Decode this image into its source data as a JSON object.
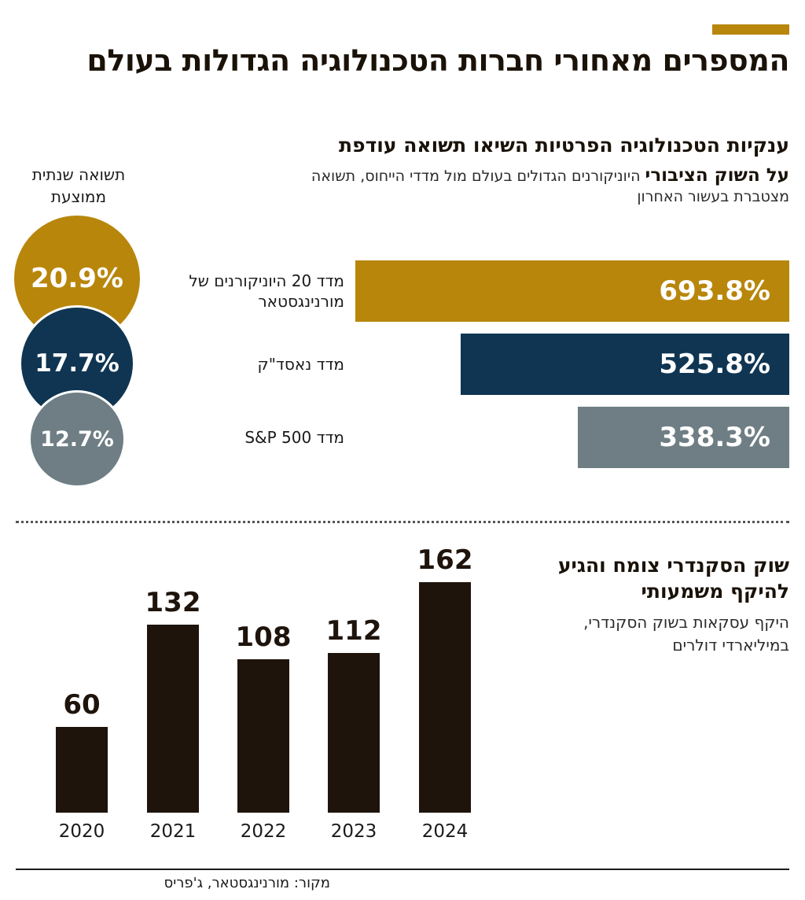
{
  "title": "המספרים מאחורי חברות הטכנולוגיה הגדולות בעולם",
  "colors": {
    "accent": "#b8860b",
    "navy": "#0f3552",
    "gray": "#6e7e84",
    "dark": "#1e140c"
  },
  "section1": {
    "heading": "ענקיות הטכנולוגיה הפרטיות השיאו תשואה עודפת",
    "sub_bold": "על השוק הציבורי",
    "sub_rest": " היוניקורנים הגדולים בעולם מול מדדי הייחוס, תשואה מצטברת בעשור האחרון",
    "avg_label": "תשואה שנתית ממוצעת"
  },
  "section2": {
    "heading": "שוק הסקנדרי צומח והגיע להיקף משמעותי",
    "sub": "היקף עסקאות בשוק הסקנדרי, במיליארדי דולרים"
  },
  "source": "מקור: מורנינגסטאר, ג'פריס",
  "chart_data": [
    {
      "type": "bar",
      "orientation": "horizontal",
      "title": "ענקיות הטכנולוגיה הפרטיות השיאו תשואה עודפת",
      "unit": "%",
      "xlim": [
        0,
        693.8
      ],
      "series": [
        {
          "name": "cumulative_return",
          "values": [
            693.8,
            525.8,
            338.3
          ]
        },
        {
          "name": "avg_annual_return",
          "values": [
            20.9,
            17.7,
            12.7
          ]
        }
      ],
      "categories": [
        "מדד 20 היוניקורנים של מורנינגסטאר",
        "מדד נאסד\"ק",
        "מדד S&P 500"
      ],
      "value_labels": [
        "693.8%",
        "525.8%",
        "338.3%"
      ],
      "avg_labels": [
        "20.9%",
        "17.7%",
        "12.7%"
      ],
      "bar_colors": [
        "#b8860b",
        "#0f3552",
        "#6e7e84"
      ]
    },
    {
      "type": "bar",
      "orientation": "vertical",
      "title": "שוק הסקנדרי צומח והגיע להיקף משמעותי",
      "ylabel": "במיליארדי דולרים",
      "ylim": [
        0,
        162
      ],
      "categories": [
        "2020",
        "2021",
        "2022",
        "2023",
        "2024"
      ],
      "values": [
        60,
        132,
        108,
        112,
        162
      ],
      "value_labels": [
        "60",
        "132",
        "108",
        "112",
        "162"
      ]
    }
  ]
}
